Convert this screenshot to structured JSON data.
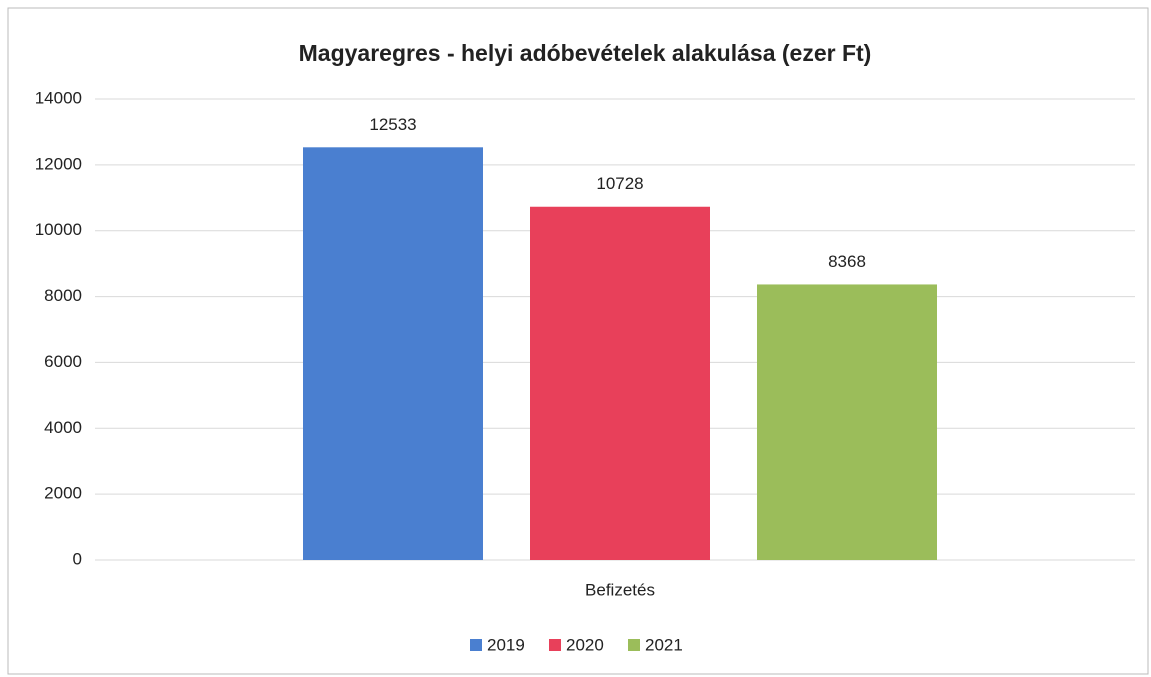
{
  "chart_data": {
    "type": "bar",
    "title": "Magyaregres - helyi adóbevételek alakulása (ezer Ft)",
    "categories": [
      "Befizetés"
    ],
    "series": [
      {
        "name": "2019",
        "color": "#4a7fd0",
        "values": [
          12533
        ]
      },
      {
        "name": "2020",
        "color": "#e8405a",
        "values": [
          10728
        ]
      },
      {
        "name": "2021",
        "color": "#9bbd5a",
        "values": [
          8368
        ]
      }
    ],
    "ylim": [
      0,
      14000
    ],
    "yticks": [
      0,
      2000,
      4000,
      6000,
      8000,
      10000,
      12000,
      14000
    ],
    "grid": true,
    "legend": "bottom"
  }
}
